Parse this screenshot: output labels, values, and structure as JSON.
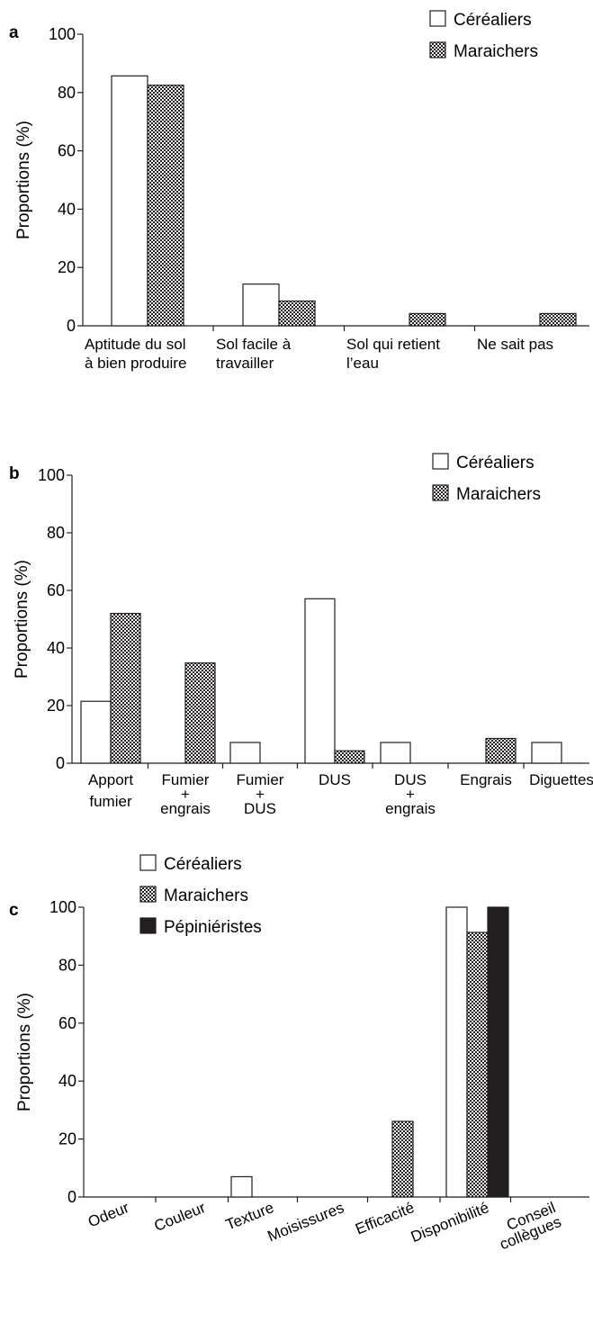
{
  "chart_data": [
    {
      "panel": "a",
      "type": "bar",
      "ylabel": "Proportions (%)",
      "ylim": [
        0,
        100
      ],
      "yticks": [
        "0",
        "20",
        "40",
        "60",
        "80",
        "100"
      ],
      "categories": [
        [
          "Aptitude du sol",
          "à bien produire"
        ],
        [
          "Sol facile à",
          "travailler"
        ],
        [
          "Sol qui retient",
          "l’eau"
        ],
        [
          "Ne sait pas"
        ]
      ],
      "legend_position": "top-right",
      "series": [
        {
          "name": "Céréaliers",
          "values": [
            85.7,
            14.3,
            0,
            0
          ]
        },
        {
          "name": "Maraichers",
          "values": [
            82.5,
            8.5,
            4.2,
            4.2
          ]
        }
      ]
    },
    {
      "panel": "b",
      "type": "bar",
      "ylabel": "Proportions (%)",
      "ylim": [
        0,
        100
      ],
      "yticks": [
        "0",
        "20",
        "40",
        "60",
        "80",
        "100"
      ],
      "categories": [
        [
          "Apport",
          "fumier"
        ],
        [
          "Fumier",
          "+",
          "engrais"
        ],
        [
          "Fumier",
          "+",
          "DUS"
        ],
        [
          "DUS"
        ],
        [
          "DUS",
          "+",
          "engrais"
        ],
        [
          "Engrais"
        ],
        [
          "Diguettes"
        ]
      ],
      "legend_position": "top-right",
      "series": [
        {
          "name": "Céréaliers",
          "values": [
            21.5,
            0,
            7.2,
            57.1,
            7.2,
            0,
            7.2
          ]
        },
        {
          "name": "Maraichers",
          "values": [
            52.0,
            34.8,
            0,
            4.3,
            0,
            8.6,
            0
          ]
        }
      ]
    },
    {
      "panel": "c",
      "type": "bar",
      "ylabel": "Proportions (%)",
      "ylim": [
        0,
        100
      ],
      "yticks": [
        "0",
        "20",
        "40",
        "60",
        "80",
        "100"
      ],
      "categories": [
        [
          "Odeur"
        ],
        [
          "Couleur"
        ],
        [
          "Texture"
        ],
        [
          "Moisissures"
        ],
        [
          "Efficacité"
        ],
        [
          "Disponibilité"
        ],
        [
          "Conseil",
          "collègues"
        ]
      ],
      "legend_position": "top-left",
      "series": [
        {
          "name": "Céréaliers",
          "values": [
            0,
            0,
            7.0,
            0,
            0,
            100,
            0
          ]
        },
        {
          "name": "Maraichers",
          "values": [
            0,
            0,
            0,
            0,
            26.1,
            91.3,
            0
          ]
        },
        {
          "name": "Pépiniéristes",
          "values": [
            0,
            0,
            0,
            0,
            0,
            100,
            0
          ]
        }
      ]
    }
  ]
}
